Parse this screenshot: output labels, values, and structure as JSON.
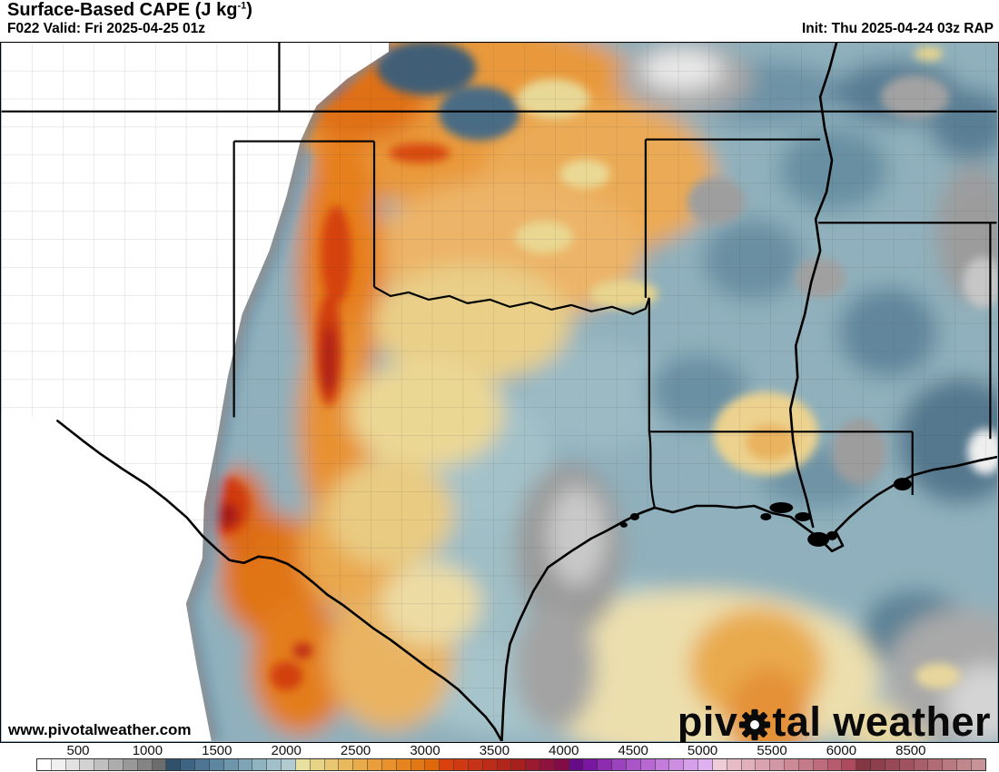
{
  "header": {
    "title": "Surface-Based CAPE",
    "unit_prefix": "(J kg",
    "unit_sup": "-1",
    "unit_suffix": ")",
    "valid": "F022 Valid: Fri 2025-04-25 01z",
    "init": "Init: Thu 2025-04-24 03z RAP"
  },
  "map": {
    "watermark": "www.pivotalweather.com",
    "logo_left": "piv",
    "logo_right": "tal weather",
    "gear_icon": "gear-icon"
  },
  "colorbar": {
    "labels": [
      "500",
      "1000",
      "1500",
      "2000",
      "2500",
      "3000",
      "3500",
      "4000",
      "4500",
      "5000",
      "5500",
      "6000",
      "8500"
    ],
    "colors": [
      "#ffffff",
      "#f0f0f0",
      "#e2e2e2",
      "#d2d2d2",
      "#c0c0c0",
      "#adadad",
      "#999999",
      "#848484",
      "#6d6d6d",
      "#31506b",
      "#3f6483",
      "#4e7694",
      "#5d86a1",
      "#6d95ac",
      "#7ea4b6",
      "#90b3c0",
      "#a2c0c9",
      "#b2cbd1",
      "#e7e09e",
      "#e6d386",
      "#e8c672",
      "#e9b95e",
      "#e9ab4b",
      "#e99e3b",
      "#e8912d",
      "#e68420",
      "#e27715",
      "#de690c",
      "#d9420e",
      "#d03a12",
      "#c63316",
      "#bc2c18",
      "#b1261b",
      "#a6201d",
      "#9a1a30",
      "#8d123c",
      "#820c46",
      "#650c86",
      "#7a17a0",
      "#8c2db0",
      "#9b42bd",
      "#a955c7",
      "#b769d1",
      "#c37cda",
      "#cd8ee2",
      "#d69fe9",
      "#dfb1f0",
      "#efcdd6",
      "#e7bcc6",
      "#e0b0bb",
      "#d9a4b0",
      "#d297a4",
      "#cc8a97",
      "#c57c8a",
      "#be6c7d",
      "#b65c6e",
      "#ad4a5e",
      "#833743",
      "#8d3f4d",
      "#974957",
      "#9f5361",
      "#a85f6b",
      "#b06b75",
      "#b87981",
      "#c0878d",
      "#c79399"
    ]
  }
}
